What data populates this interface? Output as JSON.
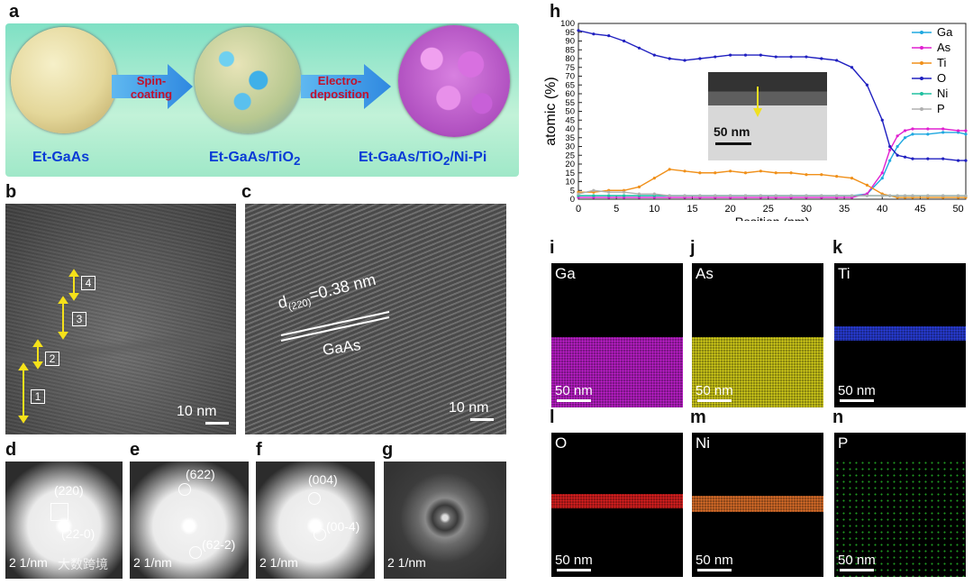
{
  "panels": {
    "a": {
      "label": "a",
      "step1": "Spin-",
      "step1b": "coating",
      "step2": "Electro-",
      "step2b": "deposition",
      "sphere1": "Et-GaAs",
      "sphere2": "Et-GaAs/TiO",
      "sphere2_sub": "2",
      "sphere3": "Et-GaAs/TiO",
      "sphere3_sub": "2",
      "sphere3_tail": "/Ni-Pi"
    },
    "b": {
      "label": "b",
      "scale": "10 nm",
      "regions": [
        "1",
        "2",
        "3",
        "4"
      ]
    },
    "c": {
      "label": "c",
      "dlabel": "d",
      "dsub": "(220)",
      "dval": "=0.38 nm",
      "material": "GaAs",
      "scale": "10 nm"
    },
    "d": {
      "label": "d",
      "spot1": "(220)",
      "spot2": "(22-0)",
      "scale": "2 1/nm",
      "watermark": "大数跨境"
    },
    "e": {
      "label": "e",
      "spot1": "(622)",
      "spot2": "(62-2)",
      "scale": "2 1/nm"
    },
    "f": {
      "label": "f",
      "spot1": "(004)",
      "spot2": "(00-4)",
      "scale": "2 1/nm"
    },
    "g": {
      "label": "g",
      "scale": "2 1/nm"
    },
    "h": {
      "label": "h",
      "inset_scale": "50 nm"
    },
    "maps": [
      {
        "label": "i",
        "element": "Ga",
        "scale": "50 nm",
        "color": "#c21fd0"
      },
      {
        "label": "j",
        "element": "As",
        "scale": "50 nm",
        "color": "#d8d21a"
      },
      {
        "label": "k",
        "element": "Ti",
        "scale": "50 nm",
        "color": "#2a3fe0"
      },
      {
        "label": "l",
        "element": "O",
        "scale": "50 nm",
        "color": "#e02020"
      },
      {
        "label": "m",
        "element": "Ni",
        "scale": "50 nm",
        "color": "#e0702a"
      },
      {
        "label": "n",
        "element": "P",
        "scale": "50 nm",
        "color": "#27c02a"
      }
    ]
  },
  "chart_data": {
    "type": "line",
    "xlabel": "Position (nm)",
    "ylabel": "atomic (%)",
    "xlim": [
      0,
      51
    ],
    "ylim": [
      0,
      100
    ],
    "xticks": [
      0,
      5,
      10,
      15,
      20,
      25,
      30,
      35,
      40,
      45,
      50
    ],
    "yticks": [
      0,
      5,
      10,
      15,
      20,
      25,
      30,
      35,
      40,
      45,
      50,
      55,
      60,
      65,
      70,
      75,
      80,
      85,
      90,
      95,
      100
    ],
    "legend_position": "top-right",
    "x": [
      0,
      2,
      4,
      6,
      8,
      10,
      12,
      14,
      16,
      18,
      20,
      22,
      24,
      26,
      28,
      30,
      32,
      34,
      36,
      38,
      40,
      41,
      42,
      43,
      44,
      46,
      48,
      50,
      51
    ],
    "series": [
      {
        "name": "Ga",
        "color": "#1fa8e0",
        "values": [
          2,
          2,
          2,
          2,
          2,
          2,
          2,
          2,
          2,
          2,
          2,
          2,
          2,
          2,
          2,
          2,
          2,
          2,
          2,
          3,
          12,
          22,
          30,
          35,
          37,
          37,
          38,
          38,
          37
        ]
      },
      {
        "name": "As",
        "color": "#e020d0",
        "values": [
          1,
          1,
          1,
          1,
          1,
          1,
          1,
          1,
          1,
          1,
          1,
          1,
          1,
          1,
          1,
          1,
          1,
          1,
          1,
          3,
          15,
          28,
          36,
          39,
          40,
          40,
          40,
          39,
          39
        ]
      },
      {
        "name": "Ti",
        "color": "#f0901a",
        "values": [
          4,
          4,
          5,
          5,
          7,
          12,
          17,
          16,
          15,
          15,
          16,
          15,
          16,
          15,
          15,
          14,
          14,
          13,
          12,
          8,
          3,
          2,
          1,
          1,
          1,
          1,
          1,
          1,
          1
        ]
      },
      {
        "name": "O",
        "color": "#2020c0",
        "values": [
          96,
          94,
          93,
          90,
          86,
          82,
          80,
          79,
          80,
          81,
          82,
          82,
          82,
          81,
          81,
          81,
          80,
          79,
          75,
          65,
          45,
          30,
          25,
          24,
          23,
          23,
          23,
          22,
          22
        ]
      },
      {
        "name": "Ni",
        "color": "#20c0a0",
        "values": [
          2,
          2,
          2,
          2,
          2,
          2,
          2,
          2,
          2,
          2,
          2,
          2,
          2,
          2,
          2,
          2,
          2,
          2,
          2,
          2,
          2,
          2,
          2,
          2,
          2,
          2,
          2,
          2,
          2
        ]
      },
      {
        "name": "P",
        "color": "#b0b0b0",
        "values": [
          3,
          5,
          4,
          4,
          3,
          3,
          2,
          2,
          2,
          2,
          2,
          2,
          2,
          2,
          2,
          2,
          2,
          2,
          2,
          2,
          2,
          2,
          2,
          2,
          2,
          2,
          2,
          2,
          2
        ]
      }
    ]
  }
}
